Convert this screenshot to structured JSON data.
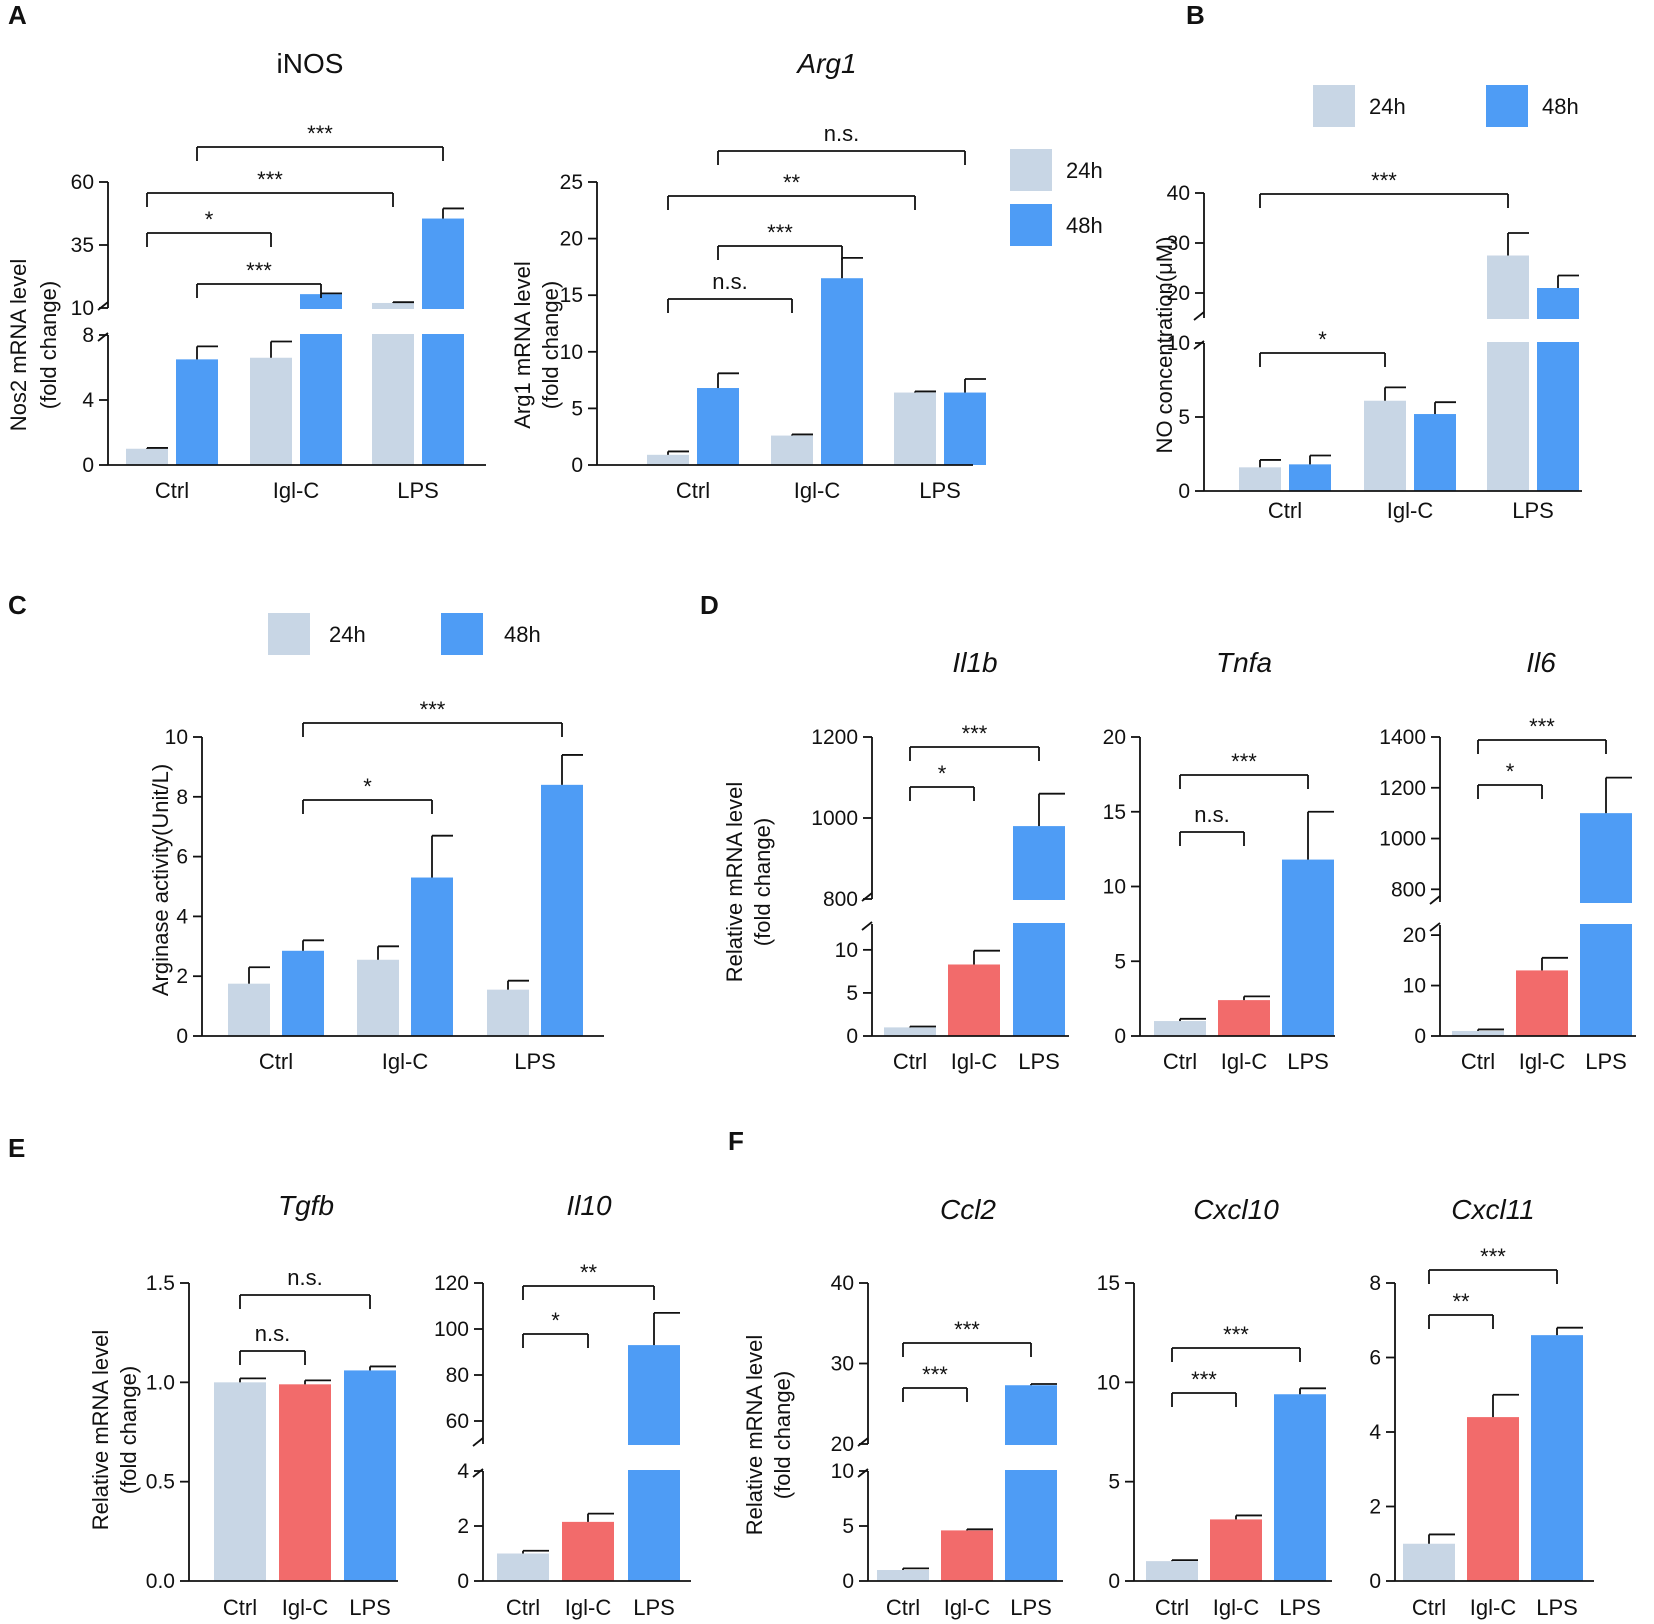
{
  "figure": {
    "colors": {
      "h24": "#c8d6e5",
      "h48": "#4e9cf5",
      "iglc": "#f26b6b",
      "ctrl": "#c8d6e5",
      "lps": "#4e9cf5"
    }
  },
  "chart_data": [
    {
      "id": "A1",
      "panel_label": "A",
      "type": "bar",
      "title": "iNOS",
      "title_italic": false,
      "ylabel": "Nos2 mRNA level (fold change)",
      "ylabel_lines": [
        "Nos2 mRNA level",
        "(fold change)"
      ],
      "categories": [
        "Ctrl",
        "Igl-C",
        "LPS"
      ],
      "series": [
        {
          "name": "24h",
          "values": [
            1.0,
            6.6,
            12.0
          ],
          "errors": [
            0.05,
            1.0,
            0.3
          ]
        },
        {
          "name": "48h",
          "values": [
            6.5,
            15.5,
            45.5
          ],
          "errors": [
            0.8,
            0.3,
            4.0
          ]
        }
      ],
      "y_segments": [
        {
          "range": [
            0,
            8
          ],
          "ticks": [
            0,
            4,
            8
          ]
        },
        {
          "range": [
            10,
            60
          ],
          "ticks": [
            10,
            35,
            60
          ]
        }
      ],
      "significance": [
        {
          "from": [
            0,
            0
          ],
          "to": [
            1,
            0
          ],
          "label": "*"
        },
        {
          "from": [
            0,
            1
          ],
          "to": [
            1,
            1
          ],
          "label": "***"
        },
        {
          "from": [
            0,
            0
          ],
          "to": [
            2,
            0
          ],
          "label": "***"
        },
        {
          "from": [
            0,
            1
          ],
          "to": [
            2,
            1
          ],
          "label": "***"
        }
      ]
    },
    {
      "id": "A2",
      "type": "bar",
      "title": "Arg1",
      "title_italic": true,
      "ylabel": "Arg1 mRNA level (fold change)",
      "ylabel_lines": [
        "Arg1 mRNA level",
        "(fold change)"
      ],
      "categories": [
        "Ctrl",
        "Igl-C",
        "LPS"
      ],
      "series": [
        {
          "name": "24h",
          "values": [
            0.9,
            2.6,
            6.4
          ],
          "errors": [
            0.3,
            0.1,
            0.1
          ]
        },
        {
          "name": "48h",
          "values": [
            6.8,
            16.5,
            6.4
          ],
          "errors": [
            1.3,
            1.8,
            1.2
          ]
        }
      ],
      "ylim": [
        0,
        25
      ],
      "yticks": [
        0,
        5,
        10,
        15,
        20,
        25
      ],
      "significance": [
        {
          "from": [
            0,
            0
          ],
          "to": [
            1,
            0
          ],
          "label": "n.s."
        },
        {
          "from": [
            0,
            1
          ],
          "to": [
            1,
            1
          ],
          "label": "***"
        },
        {
          "from": [
            0,
            0
          ],
          "to": [
            2,
            0
          ],
          "label": "**"
        },
        {
          "from": [
            0,
            1
          ],
          "to": [
            2,
            1
          ],
          "label": "n.s."
        }
      ],
      "legend": [
        "24h",
        "48h"
      ]
    },
    {
      "id": "B",
      "panel_label": "B",
      "type": "bar",
      "title": "",
      "ylabel": "NO concentration(μM)",
      "ylabel_lines": [
        "NO concentration(μM)"
      ],
      "categories": [
        "Ctrl",
        "Igl-C",
        "LPS"
      ],
      "series": [
        {
          "name": "24h",
          "values": [
            1.6,
            6.1,
            27.5
          ],
          "errors": [
            0.5,
            0.9,
            4.5
          ]
        },
        {
          "name": "48h",
          "values": [
            1.8,
            5.2,
            21.0
          ],
          "errors": [
            0.6,
            0.8,
            2.5
          ]
        }
      ],
      "y_segments": [
        {
          "range": [
            0,
            10
          ],
          "ticks": [
            0,
            5,
            10
          ]
        },
        {
          "range": [
            15,
            40
          ],
          "ticks": [
            20,
            30,
            40
          ]
        }
      ],
      "significance": [
        {
          "from": [
            0,
            0
          ],
          "to": [
            1,
            0
          ],
          "label": "*"
        },
        {
          "from": [
            0,
            0
          ],
          "to": [
            2,
            0
          ],
          "label": "***"
        }
      ],
      "legend": [
        "24h",
        "48h"
      ]
    },
    {
      "id": "C",
      "panel_label": "C",
      "type": "bar",
      "title": "",
      "ylabel": "Arginase activity(Unit/L)",
      "ylabel_lines": [
        "Arginase activity(Unit/L)"
      ],
      "categories": [
        "Ctrl",
        "Igl-C",
        "LPS"
      ],
      "series": [
        {
          "name": "24h",
          "values": [
            1.75,
            2.55,
            1.55
          ],
          "errors": [
            0.55,
            0.45,
            0.3
          ]
        },
        {
          "name": "48h",
          "values": [
            2.85,
            5.3,
            8.4
          ],
          "errors": [
            0.35,
            1.4,
            1.0
          ]
        }
      ],
      "ylim": [
        0,
        10
      ],
      "yticks": [
        0,
        2,
        4,
        6,
        8,
        10
      ],
      "significance": [
        {
          "from": [
            0,
            1
          ],
          "to": [
            1,
            1
          ],
          "label": "*"
        },
        {
          "from": [
            0,
            1
          ],
          "to": [
            2,
            1
          ],
          "label": "***"
        }
      ],
      "legend": [
        "24h",
        "48h"
      ]
    },
    {
      "id": "D1",
      "panel_label": "D",
      "type": "bar",
      "title": "Il1b",
      "title_italic": true,
      "ylabel": "Relative mRNA level (fold change)",
      "ylabel_lines": [
        "Relative mRNA level",
        "(fold change)"
      ],
      "categories": [
        "Ctrl",
        "Igl-C",
        "LPS"
      ],
      "values": [
        1.0,
        8.3,
        980
      ],
      "errors": [
        0.1,
        1.6,
        80
      ],
      "y_segments": [
        {
          "range": [
            0,
            13
          ],
          "ticks": [
            0,
            5,
            10
          ]
        },
        {
          "range": [
            800,
            1200
          ],
          "ticks": [
            800,
            1000,
            1200
          ]
        }
      ],
      "significance": [
        {
          "from": 0,
          "to": 1,
          "label": "*"
        },
        {
          "from": 0,
          "to": 2,
          "label": "***"
        }
      ]
    },
    {
      "id": "D2",
      "type": "bar",
      "title": "Tnfa",
      "title_italic": true,
      "categories": [
        "Ctrl",
        "Igl-C",
        "LPS"
      ],
      "values": [
        1.0,
        2.4,
        11.8
      ],
      "errors": [
        0.15,
        0.25,
        3.2
      ],
      "ylim": [
        0,
        20
      ],
      "yticks": [
        0,
        5,
        10,
        15,
        20
      ],
      "significance": [
        {
          "from": 0,
          "to": 1,
          "label": "n.s."
        },
        {
          "from": 0,
          "to": 2,
          "label": "***"
        }
      ]
    },
    {
      "id": "D3",
      "type": "bar",
      "title": "Il6",
      "title_italic": true,
      "categories": [
        "Ctrl",
        "Igl-C",
        "LPS"
      ],
      "values": [
        1.0,
        13.0,
        1100
      ],
      "errors": [
        0.3,
        2.5,
        140
      ],
      "y_segments": [
        {
          "range": [
            0,
            22
          ],
          "ticks": [
            0,
            10,
            20
          ]
        },
        {
          "range": [
            750,
            1400
          ],
          "ticks": [
            800,
            1000,
            1200,
            1400
          ]
        }
      ],
      "significance": [
        {
          "from": 0,
          "to": 1,
          "label": "*"
        },
        {
          "from": 0,
          "to": 2,
          "label": "***"
        }
      ]
    },
    {
      "id": "E1",
      "panel_label": "E",
      "type": "bar",
      "title": "Tgfb",
      "title_italic": true,
      "ylabel": "Relative mRNA level (fold change)",
      "ylabel_lines": [
        "Relative mRNA level",
        "(fold change)"
      ],
      "categories": [
        "Ctrl",
        "Igl-C",
        "LPS"
      ],
      "values": [
        1.0,
        0.99,
        1.06
      ],
      "errors": [
        0.02,
        0.02,
        0.02
      ],
      "ylim": [
        0,
        1.5
      ],
      "yticks": [
        0.0,
        0.5,
        1.0,
        1.5
      ],
      "ytick_labels": [
        "0.0",
        "0.5",
        "1.0",
        "1.5"
      ],
      "significance": [
        {
          "from": 0,
          "to": 1,
          "label": "n.s."
        },
        {
          "from": 0,
          "to": 2,
          "label": "n.s."
        }
      ]
    },
    {
      "id": "E2",
      "type": "bar",
      "title": "Il10",
      "title_italic": true,
      "categories": [
        "Ctrl",
        "Igl-C",
        "LPS"
      ],
      "values": [
        1.0,
        2.15,
        93
      ],
      "errors": [
        0.1,
        0.3,
        14
      ],
      "y_segments": [
        {
          "range": [
            0,
            4
          ],
          "ticks": [
            0,
            2,
            4
          ]
        },
        {
          "range": [
            50,
            120
          ],
          "ticks": [
            60,
            80,
            100,
            120
          ]
        }
      ],
      "significance": [
        {
          "from": 0,
          "to": 1,
          "label": "*"
        },
        {
          "from": 0,
          "to": 2,
          "label": "**"
        }
      ]
    },
    {
      "id": "F1",
      "panel_label": "F",
      "type": "bar",
      "title": "Ccl2",
      "title_italic": true,
      "ylabel": "Relative mRNA level (fold change)",
      "ylabel_lines": [
        "Relative mRNA level",
        "(fold change)"
      ],
      "categories": [
        "Ctrl",
        "Igl-C",
        "LPS"
      ],
      "values": [
        1.0,
        4.6,
        27.3
      ],
      "errors": [
        0.15,
        0.1,
        0.15
      ],
      "y_segments": [
        {
          "range": [
            0,
            10
          ],
          "ticks": [
            0,
            5,
            10
          ]
        },
        {
          "range": [
            20,
            40
          ],
          "ticks": [
            20,
            30,
            40
          ]
        }
      ],
      "significance": [
        {
          "from": 0,
          "to": 1,
          "label": "***"
        },
        {
          "from": 0,
          "to": 2,
          "label": "***"
        }
      ]
    },
    {
      "id": "F2",
      "type": "bar",
      "title": "Cxcl10",
      "title_italic": true,
      "categories": [
        "Ctrl",
        "Igl-C",
        "LPS"
      ],
      "values": [
        1.0,
        3.1,
        9.4
      ],
      "errors": [
        0.05,
        0.2,
        0.3
      ],
      "ylim": [
        0,
        15
      ],
      "yticks": [
        0,
        5,
        10,
        15
      ],
      "significance": [
        {
          "from": 0,
          "to": 1,
          "label": "***"
        },
        {
          "from": 0,
          "to": 2,
          "label": "***"
        }
      ]
    },
    {
      "id": "F3",
      "type": "bar",
      "title": "Cxcl11",
      "title_italic": true,
      "categories": [
        "Ctrl",
        "Igl-C",
        "LPS"
      ],
      "values": [
        1.0,
        4.4,
        6.6
      ],
      "errors": [
        0.25,
        0.6,
        0.2
      ],
      "ylim": [
        0,
        8
      ],
      "yticks": [
        0,
        2,
        4,
        6,
        8
      ],
      "significance": [
        {
          "from": 0,
          "to": 1,
          "label": "**"
        },
        {
          "from": 0,
          "to": 2,
          "label": "***"
        }
      ]
    }
  ]
}
